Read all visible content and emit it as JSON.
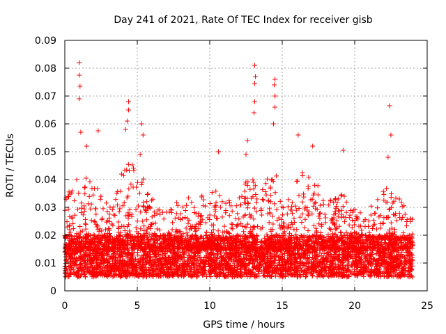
{
  "chart_data": {
    "type": "scatter",
    "title": "Day 241 of 2021, Rate Of TEC Index for receiver gisb",
    "xlabel": "GPS time / hours",
    "ylabel": "ROTI / TECUs",
    "xlim": [
      0,
      25
    ],
    "ylim": [
      0,
      0.09
    ],
    "x_ticks": [
      "0",
      "5",
      "10",
      "15",
      "20",
      "25"
    ],
    "y_ticks": [
      "0",
      "0.01",
      "0.02",
      "0.03",
      "0.04",
      "0.05",
      "0.06",
      "0.07",
      "0.08",
      "0.09"
    ],
    "grid": true,
    "marker": "+",
    "marker_color": "#ff0000",
    "background_band": {
      "x_range": [
        0,
        24
      ],
      "y_range": [
        0.005,
        0.02
      ],
      "density": "very dense"
    },
    "peaks": [
      {
        "x": 1.0,
        "y": 0.082
      },
      {
        "x": 1.0,
        "y": 0.0775
      },
      {
        "x": 1.05,
        "y": 0.0735
      },
      {
        "x": 1.0,
        "y": 0.069
      },
      {
        "x": 1.1,
        "y": 0.057
      },
      {
        "x": 1.5,
        "y": 0.052
      },
      {
        "x": 2.3,
        "y": 0.0575
      },
      {
        "x": 4.4,
        "y": 0.068
      },
      {
        "x": 4.4,
        "y": 0.065
      },
      {
        "x": 4.3,
        "y": 0.061
      },
      {
        "x": 4.2,
        "y": 0.058
      },
      {
        "x": 5.3,
        "y": 0.06
      },
      {
        "x": 5.4,
        "y": 0.056
      },
      {
        "x": 5.2,
        "y": 0.049
      },
      {
        "x": 10.6,
        "y": 0.05
      },
      {
        "x": 12.6,
        "y": 0.054
      },
      {
        "x": 12.5,
        "y": 0.049
      },
      {
        "x": 13.1,
        "y": 0.081
      },
      {
        "x": 13.15,
        "y": 0.077
      },
      {
        "x": 13.1,
        "y": 0.0745
      },
      {
        "x": 13.1,
        "y": 0.068
      },
      {
        "x": 13.05,
        "y": 0.064
      },
      {
        "x": 14.5,
        "y": 0.076
      },
      {
        "x": 14.45,
        "y": 0.074
      },
      {
        "x": 14.5,
        "y": 0.07
      },
      {
        "x": 14.5,
        "y": 0.066
      },
      {
        "x": 14.4,
        "y": 0.06
      },
      {
        "x": 16.1,
        "y": 0.056
      },
      {
        "x": 17.1,
        "y": 0.052
      },
      {
        "x": 19.2,
        "y": 0.0505
      },
      {
        "x": 22.4,
        "y": 0.0665
      },
      {
        "x": 22.5,
        "y": 0.056
      },
      {
        "x": 22.3,
        "y": 0.048
      }
    ],
    "activity_envelope": {
      "hours": [
        0,
        0.5,
        1,
        1.5,
        2,
        2.5,
        3,
        3.5,
        4,
        4.5,
        5,
        5.5,
        6,
        6.5,
        7,
        7.5,
        8,
        8.5,
        9,
        9.5,
        10,
        10.5,
        11,
        11.5,
        12,
        12.5,
        13,
        13.5,
        14,
        14.5,
        15,
        15.5,
        16,
        16.5,
        17,
        17.5,
        18,
        18.5,
        19,
        19.5,
        20,
        20.5,
        21,
        21.5,
        22,
        22.5,
        23,
        23.5,
        24
      ],
      "upper_roti": [
        0.038,
        0.036,
        0.048,
        0.044,
        0.04,
        0.034,
        0.032,
        0.036,
        0.044,
        0.046,
        0.044,
        0.04,
        0.034,
        0.03,
        0.032,
        0.034,
        0.03,
        0.034,
        0.032,
        0.036,
        0.036,
        0.038,
        0.036,
        0.032,
        0.034,
        0.04,
        0.04,
        0.038,
        0.042,
        0.044,
        0.036,
        0.034,
        0.04,
        0.044,
        0.044,
        0.038,
        0.034,
        0.032,
        0.036,
        0.034,
        0.03,
        0.028,
        0.03,
        0.034,
        0.038,
        0.038,
        0.034,
        0.03,
        0.028
      ]
    }
  }
}
